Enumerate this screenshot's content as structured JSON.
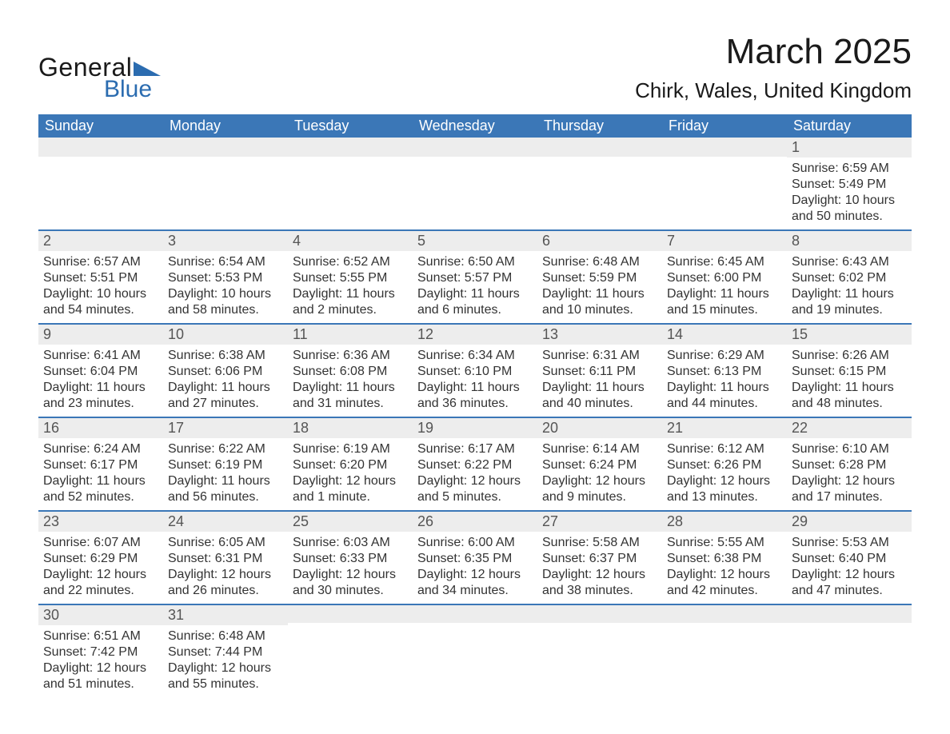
{
  "logo": {
    "text1": "General",
    "text2": "Blue",
    "tri_color": "#2b6cb0"
  },
  "title": {
    "month": "March 2025",
    "location": "Chirk, Wales, United Kingdom"
  },
  "style": {
    "header_bg": "#3b77b7",
    "header_fg": "#ffffff",
    "daynum_bg": "#ededed",
    "row_border": "#3b77b7",
    "text_color": "#333333",
    "page_bg": "#ffffff",
    "title_fontsize": 44,
    "location_fontsize": 26,
    "dow_fontsize": 18,
    "daynum_fontsize": 18,
    "body_fontsize": 16
  },
  "dow": [
    "Sunday",
    "Monday",
    "Tuesday",
    "Wednesday",
    "Thursday",
    "Friday",
    "Saturday"
  ],
  "weeks": [
    [
      {
        "n": "",
        "sunrise": "",
        "sunset": "",
        "daylight": ""
      },
      {
        "n": "",
        "sunrise": "",
        "sunset": "",
        "daylight": ""
      },
      {
        "n": "",
        "sunrise": "",
        "sunset": "",
        "daylight": ""
      },
      {
        "n": "",
        "sunrise": "",
        "sunset": "",
        "daylight": ""
      },
      {
        "n": "",
        "sunrise": "",
        "sunset": "",
        "daylight": ""
      },
      {
        "n": "",
        "sunrise": "",
        "sunset": "",
        "daylight": ""
      },
      {
        "n": "1",
        "sunrise": "Sunrise: 6:59 AM",
        "sunset": "Sunset: 5:49 PM",
        "daylight": "Daylight: 10 hours and 50 minutes."
      }
    ],
    [
      {
        "n": "2",
        "sunrise": "Sunrise: 6:57 AM",
        "sunset": "Sunset: 5:51 PM",
        "daylight": "Daylight: 10 hours and 54 minutes."
      },
      {
        "n": "3",
        "sunrise": "Sunrise: 6:54 AM",
        "sunset": "Sunset: 5:53 PM",
        "daylight": "Daylight: 10 hours and 58 minutes."
      },
      {
        "n": "4",
        "sunrise": "Sunrise: 6:52 AM",
        "sunset": "Sunset: 5:55 PM",
        "daylight": "Daylight: 11 hours and 2 minutes."
      },
      {
        "n": "5",
        "sunrise": "Sunrise: 6:50 AM",
        "sunset": "Sunset: 5:57 PM",
        "daylight": "Daylight: 11 hours and 6 minutes."
      },
      {
        "n": "6",
        "sunrise": "Sunrise: 6:48 AM",
        "sunset": "Sunset: 5:59 PM",
        "daylight": "Daylight: 11 hours and 10 minutes."
      },
      {
        "n": "7",
        "sunrise": "Sunrise: 6:45 AM",
        "sunset": "Sunset: 6:00 PM",
        "daylight": "Daylight: 11 hours and 15 minutes."
      },
      {
        "n": "8",
        "sunrise": "Sunrise: 6:43 AM",
        "sunset": "Sunset: 6:02 PM",
        "daylight": "Daylight: 11 hours and 19 minutes."
      }
    ],
    [
      {
        "n": "9",
        "sunrise": "Sunrise: 6:41 AM",
        "sunset": "Sunset: 6:04 PM",
        "daylight": "Daylight: 11 hours and 23 minutes."
      },
      {
        "n": "10",
        "sunrise": "Sunrise: 6:38 AM",
        "sunset": "Sunset: 6:06 PM",
        "daylight": "Daylight: 11 hours and 27 minutes."
      },
      {
        "n": "11",
        "sunrise": "Sunrise: 6:36 AM",
        "sunset": "Sunset: 6:08 PM",
        "daylight": "Daylight: 11 hours and 31 minutes."
      },
      {
        "n": "12",
        "sunrise": "Sunrise: 6:34 AM",
        "sunset": "Sunset: 6:10 PM",
        "daylight": "Daylight: 11 hours and 36 minutes."
      },
      {
        "n": "13",
        "sunrise": "Sunrise: 6:31 AM",
        "sunset": "Sunset: 6:11 PM",
        "daylight": "Daylight: 11 hours and 40 minutes."
      },
      {
        "n": "14",
        "sunrise": "Sunrise: 6:29 AM",
        "sunset": "Sunset: 6:13 PM",
        "daylight": "Daylight: 11 hours and 44 minutes."
      },
      {
        "n": "15",
        "sunrise": "Sunrise: 6:26 AM",
        "sunset": "Sunset: 6:15 PM",
        "daylight": "Daylight: 11 hours and 48 minutes."
      }
    ],
    [
      {
        "n": "16",
        "sunrise": "Sunrise: 6:24 AM",
        "sunset": "Sunset: 6:17 PM",
        "daylight": "Daylight: 11 hours and 52 minutes."
      },
      {
        "n": "17",
        "sunrise": "Sunrise: 6:22 AM",
        "sunset": "Sunset: 6:19 PM",
        "daylight": "Daylight: 11 hours and 56 minutes."
      },
      {
        "n": "18",
        "sunrise": "Sunrise: 6:19 AM",
        "sunset": "Sunset: 6:20 PM",
        "daylight": "Daylight: 12 hours and 1 minute."
      },
      {
        "n": "19",
        "sunrise": "Sunrise: 6:17 AM",
        "sunset": "Sunset: 6:22 PM",
        "daylight": "Daylight: 12 hours and 5 minutes."
      },
      {
        "n": "20",
        "sunrise": "Sunrise: 6:14 AM",
        "sunset": "Sunset: 6:24 PM",
        "daylight": "Daylight: 12 hours and 9 minutes."
      },
      {
        "n": "21",
        "sunrise": "Sunrise: 6:12 AM",
        "sunset": "Sunset: 6:26 PM",
        "daylight": "Daylight: 12 hours and 13 minutes."
      },
      {
        "n": "22",
        "sunrise": "Sunrise: 6:10 AM",
        "sunset": "Sunset: 6:28 PM",
        "daylight": "Daylight: 12 hours and 17 minutes."
      }
    ],
    [
      {
        "n": "23",
        "sunrise": "Sunrise: 6:07 AM",
        "sunset": "Sunset: 6:29 PM",
        "daylight": "Daylight: 12 hours and 22 minutes."
      },
      {
        "n": "24",
        "sunrise": "Sunrise: 6:05 AM",
        "sunset": "Sunset: 6:31 PM",
        "daylight": "Daylight: 12 hours and 26 minutes."
      },
      {
        "n": "25",
        "sunrise": "Sunrise: 6:03 AM",
        "sunset": "Sunset: 6:33 PM",
        "daylight": "Daylight: 12 hours and 30 minutes."
      },
      {
        "n": "26",
        "sunrise": "Sunrise: 6:00 AM",
        "sunset": "Sunset: 6:35 PM",
        "daylight": "Daylight: 12 hours and 34 minutes."
      },
      {
        "n": "27",
        "sunrise": "Sunrise: 5:58 AM",
        "sunset": "Sunset: 6:37 PM",
        "daylight": "Daylight: 12 hours and 38 minutes."
      },
      {
        "n": "28",
        "sunrise": "Sunrise: 5:55 AM",
        "sunset": "Sunset: 6:38 PM",
        "daylight": "Daylight: 12 hours and 42 minutes."
      },
      {
        "n": "29",
        "sunrise": "Sunrise: 5:53 AM",
        "sunset": "Sunset: 6:40 PM",
        "daylight": "Daylight: 12 hours and 47 minutes."
      }
    ],
    [
      {
        "n": "30",
        "sunrise": "Sunrise: 6:51 AM",
        "sunset": "Sunset: 7:42 PM",
        "daylight": "Daylight: 12 hours and 51 minutes."
      },
      {
        "n": "31",
        "sunrise": "Sunrise: 6:48 AM",
        "sunset": "Sunset: 7:44 PM",
        "daylight": "Daylight: 12 hours and 55 minutes."
      },
      {
        "n": "",
        "sunrise": "",
        "sunset": "",
        "daylight": ""
      },
      {
        "n": "",
        "sunrise": "",
        "sunset": "",
        "daylight": ""
      },
      {
        "n": "",
        "sunrise": "",
        "sunset": "",
        "daylight": ""
      },
      {
        "n": "",
        "sunrise": "",
        "sunset": "",
        "daylight": ""
      },
      {
        "n": "",
        "sunrise": "",
        "sunset": "",
        "daylight": ""
      }
    ]
  ]
}
